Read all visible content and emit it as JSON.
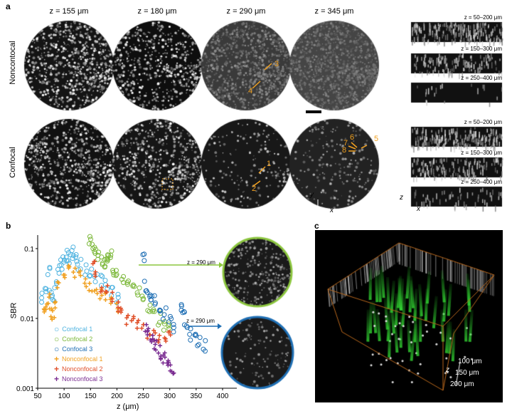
{
  "panel_a": {
    "label": "a",
    "columns": [
      "z = 155 μm",
      "z = 180 μm",
      "z = 290 μm",
      "z = 345 μm"
    ],
    "rows": [
      "Noncontocal",
      "Confocal"
    ],
    "side_noncon": [
      "z = 50–200 μm",
      "z = 150–300 μm",
      "z = 250–400 μm"
    ],
    "side_con": [
      "z = 50–200 μm",
      "z = 150–300 μm",
      "z = 250–400 μm"
    ],
    "annotations": {
      "n3": "3",
      "n4": "4",
      "n1": "1",
      "n2": "2",
      "n5": "5",
      "n6": "6",
      "n7": "7",
      "n8": "8"
    },
    "axes_xy": {
      "y": "y",
      "x": "x"
    },
    "axes_zx": {
      "z": "z",
      "x": "x"
    },
    "accent": "#f0a020"
  },
  "panel_b": {
    "label": "b",
    "inset_green": "z = 290 μm",
    "inset_blue": "z = 290 μm"
  },
  "chart_data": {
    "type": "scatter",
    "xlabel": "z (μm)",
    "ylabel": "SBR",
    "xlim": [
      50,
      420
    ],
    "ylim": [
      0.001,
      0.15
    ],
    "yscale": "log",
    "xticks": [
      "50",
      "100",
      "150",
      "200",
      "250",
      "300",
      "350",
      "400"
    ],
    "yticks": [
      "0.1",
      "0.01",
      "0.001"
    ],
    "legend_position": "bottom-left",
    "series": [
      {
        "name": "Confocal 1",
        "color": "#4fb3e0",
        "marker": "circle",
        "points": [
          [
            60,
            0.02
          ],
          [
            65,
            0.03
          ],
          [
            70,
            0.045
          ],
          [
            75,
            0.025
          ],
          [
            80,
            0.02
          ],
          [
            85,
            0.03
          ],
          [
            90,
            0.05
          ],
          [
            95,
            0.06
          ],
          [
            100,
            0.07
          ],
          [
            105,
            0.08
          ],
          [
            110,
            0.075
          ],
          [
            115,
            0.085
          ],
          [
            120,
            0.09
          ],
          [
            125,
            0.07
          ],
          [
            130,
            0.06
          ],
          [
            140,
            0.05
          ],
          [
            150,
            0.045
          ],
          [
            160,
            0.04
          ],
          [
            170,
            0.035
          ],
          [
            180,
            0.03
          ],
          [
            190,
            0.025
          ],
          [
            200,
            0.02
          ]
        ]
      },
      {
        "name": "Confocal 2",
        "color": "#7cb83a",
        "marker": "circle",
        "points": [
          [
            150,
            0.14
          ],
          [
            155,
            0.1
          ],
          [
            160,
            0.09
          ],
          [
            165,
            0.08
          ],
          [
            170,
            0.07
          ],
          [
            175,
            0.065
          ],
          [
            180,
            0.06
          ],
          [
            185,
            0.07
          ],
          [
            190,
            0.08
          ],
          [
            195,
            0.05
          ],
          [
            200,
            0.045
          ],
          [
            210,
            0.04
          ],
          [
            220,
            0.035
          ],
          [
            230,
            0.03
          ],
          [
            240,
            0.025
          ],
          [
            250,
            0.018
          ],
          [
            260,
            0.015
          ],
          [
            270,
            0.012
          ],
          [
            280,
            0.01
          ],
          [
            290,
            0.008
          ],
          [
            300,
            0.007
          ]
        ]
      },
      {
        "name": "Confocal 3",
        "color": "#1f6fb4",
        "marker": "circle",
        "points": [
          [
            250,
            0.08
          ],
          [
            255,
            0.03
          ],
          [
            260,
            0.025
          ],
          [
            265,
            0.02
          ],
          [
            270,
            0.018
          ],
          [
            280,
            0.015
          ],
          [
            290,
            0.012
          ],
          [
            300,
            0.01
          ],
          [
            310,
            0.008
          ],
          [
            320,
            0.015
          ],
          [
            325,
            0.013
          ],
          [
            330,
            0.007
          ],
          [
            340,
            0.006
          ],
          [
            350,
            0.005
          ],
          [
            355,
            0.0045
          ],
          [
            365,
            0.004
          ]
        ]
      },
      {
        "name": "Nonconfocal 1",
        "color": "#f0a020",
        "marker": "plus",
        "points": [
          [
            60,
            0.012
          ],
          [
            65,
            0.015
          ],
          [
            70,
            0.02
          ],
          [
            75,
            0.013
          ],
          [
            80,
            0.012
          ],
          [
            85,
            0.015
          ],
          [
            90,
            0.03
          ],
          [
            100,
            0.04
          ],
          [
            110,
            0.05
          ],
          [
            120,
            0.045
          ],
          [
            130,
            0.04
          ],
          [
            140,
            0.035
          ],
          [
            150,
            0.03
          ],
          [
            160,
            0.025
          ],
          [
            170,
            0.022
          ],
          [
            180,
            0.02
          ],
          [
            190,
            0.018
          ],
          [
            200,
            0.015
          ]
        ]
      },
      {
        "name": "Nonconfocal 2",
        "color": "#e0502a",
        "marker": "plus",
        "points": [
          [
            155,
            0.06
          ],
          [
            160,
            0.04
          ],
          [
            170,
            0.03
          ],
          [
            180,
            0.025
          ],
          [
            190,
            0.02
          ],
          [
            200,
            0.015
          ],
          [
            210,
            0.012
          ],
          [
            220,
            0.01
          ],
          [
            230,
            0.009
          ],
          [
            240,
            0.008
          ],
          [
            250,
            0.007
          ],
          [
            260,
            0.006
          ],
          [
            270,
            0.006
          ],
          [
            280,
            0.005
          ],
          [
            290,
            0.005
          ],
          [
            300,
            0.0055
          ]
        ]
      },
      {
        "name": "Nonconfocal 3",
        "color": "#7a2c91",
        "marker": "plus",
        "points": [
          [
            255,
            0.008
          ],
          [
            260,
            0.006
          ],
          [
            265,
            0.005
          ],
          [
            270,
            0.0045
          ],
          [
            275,
            0.004
          ],
          [
            280,
            0.0035
          ],
          [
            285,
            0.003
          ],
          [
            290,
            0.0028
          ],
          [
            295,
            0.0022
          ],
          [
            300,
            0.002
          ],
          [
            305,
            0.0018
          ]
        ]
      }
    ]
  },
  "panel_c": {
    "label": "c",
    "depth_axis": "z",
    "depths": [
      "100 μm",
      "150 μm",
      "200 μm"
    ]
  }
}
